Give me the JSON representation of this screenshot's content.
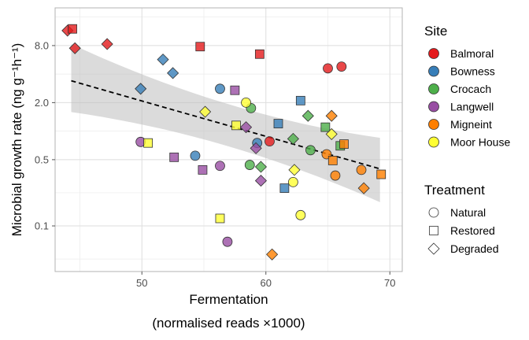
{
  "chart_data": {
    "type": "scatter",
    "xlabel_line1": "Fermentation",
    "xlabel_line2": "(normalised reads ×1000)",
    "ylabel": "Microbial growth rate (ng g⁻¹h⁻¹)",
    "xlim": [
      43,
      71
    ],
    "ylim": [
      0.033,
      20
    ],
    "y_scale": "log",
    "x_ticks": [
      50,
      60,
      70
    ],
    "y_ticks": [
      0.1,
      0.5,
      2.0,
      8.0
    ],
    "y_tick_labels": [
      "0.1",
      "0.5",
      "2.0",
      "8.0"
    ],
    "grid": true,
    "legend_placement": "right",
    "site_legend_title": "Site",
    "treatment_legend_title": "Treatment",
    "sites": [
      {
        "name": "Balmoral",
        "color": "#e41a1c"
      },
      {
        "name": "Bowness",
        "color": "#377eb8"
      },
      {
        "name": "Crocach",
        "color": "#4daf4a"
      },
      {
        "name": "Langwell",
        "color": "#984ea3"
      },
      {
        "name": "Migneint",
        "color": "#ff7f00"
      },
      {
        "name": "Moor House",
        "color": "#ffff33"
      }
    ],
    "treatments": [
      {
        "name": "Natural",
        "shape": "circle"
      },
      {
        "name": "Restored",
        "shape": "square"
      },
      {
        "name": "Degraded",
        "shape": "diamond"
      }
    ],
    "trend": {
      "x": [
        44.3,
        69.2
      ],
      "y": [
        3.4,
        0.4
      ],
      "ci_lower": [
        1.8,
        0.2
      ],
      "ci_upper": [
        7.5,
        0.75
      ]
    },
    "points": [
      {
        "x": 44.0,
        "y": 11.5,
        "site": "Balmoral",
        "treatment": "Degraded"
      },
      {
        "x": 44.4,
        "y": 12.0,
        "site": "Balmoral",
        "treatment": "Restored"
      },
      {
        "x": 44.6,
        "y": 7.5,
        "site": "Balmoral",
        "treatment": "Degraded"
      },
      {
        "x": 47.2,
        "y": 8.3,
        "site": "Balmoral",
        "treatment": "Degraded"
      },
      {
        "x": 54.7,
        "y": 7.8,
        "site": "Balmoral",
        "treatment": "Restored"
      },
      {
        "x": 59.5,
        "y": 6.5,
        "site": "Balmoral",
        "treatment": "Restored"
      },
      {
        "x": 60.3,
        "y": 0.78,
        "site": "Balmoral",
        "treatment": "Natural"
      },
      {
        "x": 65.0,
        "y": 4.6,
        "site": "Balmoral",
        "treatment": "Natural"
      },
      {
        "x": 66.1,
        "y": 4.8,
        "site": "Balmoral",
        "treatment": "Natural"
      },
      {
        "x": 51.7,
        "y": 5.7,
        "site": "Bowness",
        "treatment": "Degraded"
      },
      {
        "x": 52.5,
        "y": 4.1,
        "site": "Bowness",
        "treatment": "Degraded"
      },
      {
        "x": 49.9,
        "y": 2.8,
        "site": "Bowness",
        "treatment": "Degraded"
      },
      {
        "x": 56.3,
        "y": 2.8,
        "site": "Bowness",
        "treatment": "Natural"
      },
      {
        "x": 54.3,
        "y": 0.55,
        "site": "Bowness",
        "treatment": "Natural"
      },
      {
        "x": 59.3,
        "y": 0.75,
        "site": "Bowness",
        "treatment": "Natural"
      },
      {
        "x": 61.0,
        "y": 1.2,
        "site": "Bowness",
        "treatment": "Restored"
      },
      {
        "x": 62.8,
        "y": 2.1,
        "site": "Bowness",
        "treatment": "Restored"
      },
      {
        "x": 61.5,
        "y": 0.25,
        "site": "Bowness",
        "treatment": "Restored"
      },
      {
        "x": 58.8,
        "y": 1.75,
        "site": "Crocach",
        "treatment": "Natural"
      },
      {
        "x": 63.4,
        "y": 1.45,
        "site": "Crocach",
        "treatment": "Degraded"
      },
      {
        "x": 64.8,
        "y": 1.1,
        "site": "Crocach",
        "treatment": "Restored"
      },
      {
        "x": 62.2,
        "y": 0.83,
        "site": "Crocach",
        "treatment": "Degraded"
      },
      {
        "x": 63.6,
        "y": 0.63,
        "site": "Crocach",
        "treatment": "Natural"
      },
      {
        "x": 66.0,
        "y": 0.7,
        "site": "Crocach",
        "treatment": "Restored"
      },
      {
        "x": 58.7,
        "y": 0.44,
        "site": "Crocach",
        "treatment": "Natural"
      },
      {
        "x": 59.6,
        "y": 0.42,
        "site": "Crocach",
        "treatment": "Degraded"
      },
      {
        "x": 57.5,
        "y": 2.7,
        "site": "Langwell",
        "treatment": "Restored"
      },
      {
        "x": 58.4,
        "y": 1.1,
        "site": "Langwell",
        "treatment": "Degraded"
      },
      {
        "x": 59.2,
        "y": 0.66,
        "site": "Langwell",
        "treatment": "Degraded"
      },
      {
        "x": 49.9,
        "y": 0.77,
        "site": "Langwell",
        "treatment": "Natural"
      },
      {
        "x": 52.6,
        "y": 0.53,
        "site": "Langwell",
        "treatment": "Restored"
      },
      {
        "x": 54.9,
        "y": 0.39,
        "site": "Langwell",
        "treatment": "Restored"
      },
      {
        "x": 56.3,
        "y": 0.43,
        "site": "Langwell",
        "treatment": "Natural"
      },
      {
        "x": 59.6,
        "y": 0.3,
        "site": "Langwell",
        "treatment": "Degraded"
      },
      {
        "x": 56.9,
        "y": 0.068,
        "site": "Langwell",
        "treatment": "Natural"
      },
      {
        "x": 65.3,
        "y": 1.45,
        "site": "Migneint",
        "treatment": "Degraded"
      },
      {
        "x": 66.3,
        "y": 0.73,
        "site": "Migneint",
        "treatment": "Restored"
      },
      {
        "x": 64.9,
        "y": 0.57,
        "site": "Migneint",
        "treatment": "Natural"
      },
      {
        "x": 65.4,
        "y": 0.49,
        "site": "Migneint",
        "treatment": "Restored"
      },
      {
        "x": 67.7,
        "y": 0.39,
        "site": "Migneint",
        "treatment": "Natural"
      },
      {
        "x": 69.3,
        "y": 0.35,
        "site": "Migneint",
        "treatment": "Restored"
      },
      {
        "x": 65.6,
        "y": 0.34,
        "site": "Migneint",
        "treatment": "Natural"
      },
      {
        "x": 67.9,
        "y": 0.25,
        "site": "Migneint",
        "treatment": "Degraded"
      },
      {
        "x": 60.5,
        "y": 0.05,
        "site": "Migneint",
        "treatment": "Degraded"
      },
      {
        "x": 55.1,
        "y": 1.6,
        "site": "Moor House",
        "treatment": "Degraded"
      },
      {
        "x": 58.4,
        "y": 2.0,
        "site": "Moor House",
        "treatment": "Natural"
      },
      {
        "x": 57.6,
        "y": 1.15,
        "site": "Moor House",
        "treatment": "Restored"
      },
      {
        "x": 50.5,
        "y": 0.75,
        "site": "Moor House",
        "treatment": "Restored"
      },
      {
        "x": 65.3,
        "y": 0.93,
        "site": "Moor House",
        "treatment": "Degraded"
      },
      {
        "x": 62.3,
        "y": 0.39,
        "site": "Moor House",
        "treatment": "Degraded"
      },
      {
        "x": 62.2,
        "y": 0.29,
        "site": "Moor House",
        "treatment": "Natural"
      },
      {
        "x": 62.8,
        "y": 0.13,
        "site": "Moor House",
        "treatment": "Natural"
      },
      {
        "x": 56.3,
        "y": 0.12,
        "site": "Moor House",
        "treatment": "Restored"
      }
    ]
  }
}
